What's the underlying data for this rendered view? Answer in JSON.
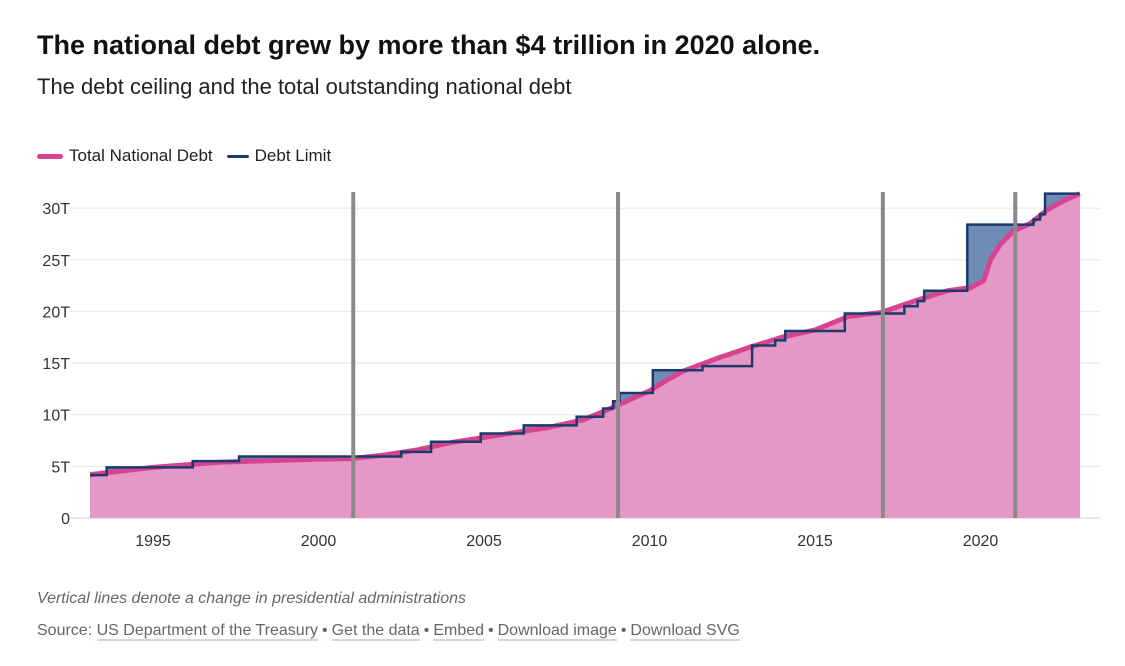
{
  "title": "The national debt grew by more than $4 trillion in 2020 alone.",
  "subtitle": "The debt ceiling and the total outstanding national debt",
  "note": "Vertical lines denote a change in presidential administrations",
  "source": {
    "label": "Source:",
    "links": [
      "US Department of the Treasury",
      "Get the data",
      "Embed",
      "Download image",
      "Download SVG"
    ]
  },
  "colors": {
    "debt_line": "#d6448f",
    "debt_fill": "#e597c6",
    "limit_line": "#1b3a6e",
    "gap_fill": "#6f8cb4",
    "admin_line": "#8a8a8a"
  },
  "chart_data": {
    "type": "area",
    "title": "The national debt grew by more than $4 trillion in 2020 alone.",
    "xlabel": "",
    "ylabel": "",
    "xlim": [
      1993.1,
      2023.1
    ],
    "ylim": [
      0,
      31.5
    ],
    "x_ticks": [
      1995,
      2000,
      2005,
      2010,
      2015,
      2020
    ],
    "x_tick_labels": [
      "1995",
      "2000",
      "2005",
      "2010",
      "2015",
      "2020"
    ],
    "y_ticks": [
      0,
      5,
      10,
      15,
      20,
      25,
      30
    ],
    "y_tick_labels": [
      "0",
      "5T",
      "10T",
      "15T",
      "20T",
      "25T",
      "30T"
    ],
    "grid": "horizontal",
    "legend_position": "top-left",
    "legend": [
      "Total National Debt",
      "Debt Limit"
    ],
    "series": [
      {
        "name": "Total National Debt",
        "unit": "trillion USD",
        "points": [
          [
            1993.1,
            4.2
          ],
          [
            1995,
            4.9
          ],
          [
            1997,
            5.4
          ],
          [
            2000,
            5.7
          ],
          [
            2001,
            5.75
          ],
          [
            2002,
            6.1
          ],
          [
            2003,
            6.6
          ],
          [
            2004,
            7.3
          ],
          [
            2005,
            7.8
          ],
          [
            2006,
            8.3
          ],
          [
            2007,
            8.8
          ],
          [
            2008,
            9.5
          ],
          [
            2008.75,
            10.5
          ],
          [
            2009.5,
            11.6
          ],
          [
            2010,
            12.3
          ],
          [
            2010.5,
            13.3
          ],
          [
            2011,
            14.2
          ],
          [
            2012,
            15.4
          ],
          [
            2013,
            16.5
          ],
          [
            2014,
            17.5
          ],
          [
            2015,
            18.2
          ],
          [
            2016,
            19.5
          ],
          [
            2017,
            19.9
          ],
          [
            2018,
            21.0
          ],
          [
            2019,
            22.0
          ],
          [
            2019.7,
            22.3
          ],
          [
            2020.1,
            23.0
          ],
          [
            2020.3,
            25.0
          ],
          [
            2020.6,
            26.5
          ],
          [
            2021,
            27.8
          ],
          [
            2021.5,
            28.5
          ],
          [
            2022,
            29.8
          ],
          [
            2022.5,
            30.7
          ],
          [
            2023,
            31.4
          ]
        ]
      },
      {
        "name": "Debt Limit",
        "unit": "trillion USD",
        "step": true,
        "points": [
          [
            1993.1,
            4.15
          ],
          [
            1993.6,
            4.9
          ],
          [
            1996.2,
            5.5
          ],
          [
            1997.6,
            5.95
          ],
          [
            2002.5,
            6.4
          ],
          [
            2003.4,
            7.38
          ],
          [
            2004.9,
            8.18
          ],
          [
            2006.2,
            8.97
          ],
          [
            2007.8,
            9.8
          ],
          [
            2008.6,
            10.6
          ],
          [
            2008.9,
            11.3
          ],
          [
            2009.1,
            12.1
          ],
          [
            2010.1,
            14.3
          ],
          [
            2011.6,
            14.7
          ],
          [
            2013.1,
            16.7
          ],
          [
            2013.8,
            17.2
          ],
          [
            2014.1,
            18.1
          ],
          [
            2015.9,
            19.8
          ],
          [
            2017.7,
            20.5
          ],
          [
            2018.1,
            21.0
          ],
          [
            2018.3,
            22.0
          ],
          [
            2019.6,
            28.4
          ],
          [
            2021.6,
            28.9
          ],
          [
            2021.8,
            29.4
          ],
          [
            2021.95,
            31.4
          ],
          [
            2023.0,
            31.4
          ]
        ]
      }
    ],
    "vertical_lines": [
      2001.05,
      2009.05,
      2017.05,
      2021.05
    ]
  }
}
